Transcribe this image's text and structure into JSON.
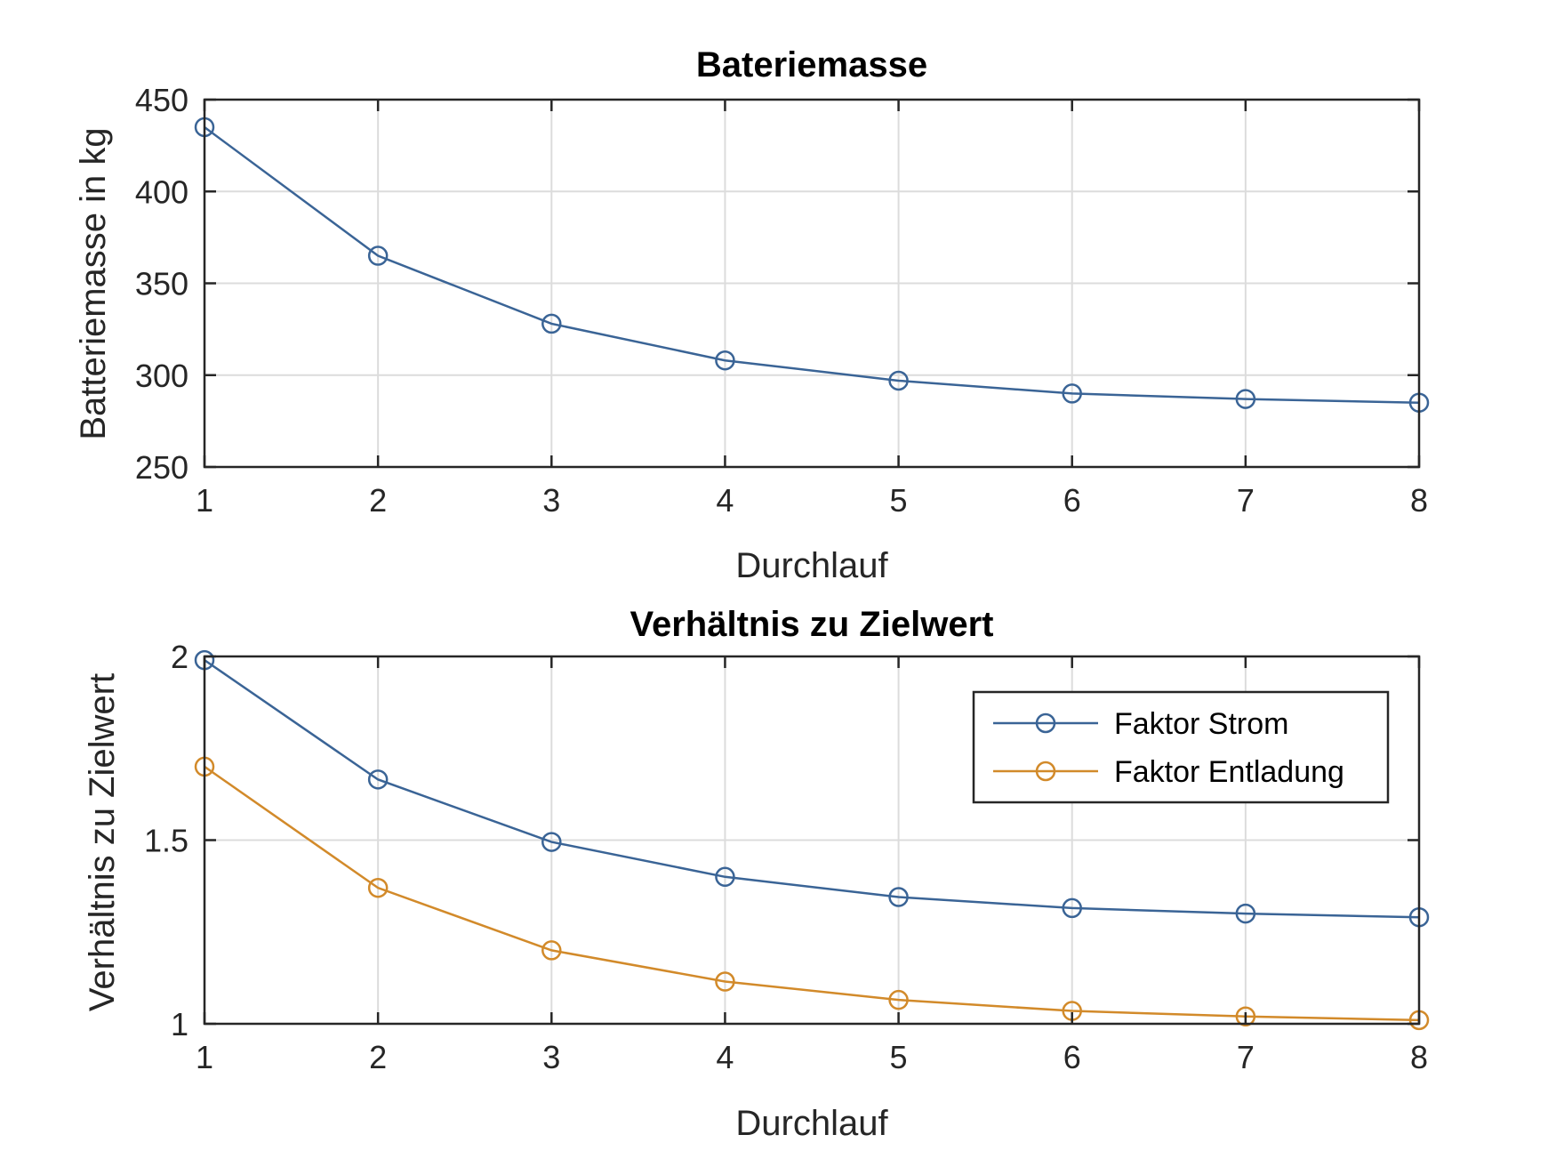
{
  "chart_data": [
    {
      "type": "line",
      "title": "Bateriemasse",
      "xlabel": "Durchlauf",
      "ylabel": "Batteriemasse in kg",
      "x": [
        1,
        2,
        3,
        4,
        5,
        6,
        7,
        8
      ],
      "xlim": [
        1,
        8
      ],
      "ylim": [
        250,
        450
      ],
      "xticks": [
        "1",
        "2",
        "3",
        "4",
        "5",
        "6",
        "7",
        "8"
      ],
      "yticks": [
        "250",
        "300",
        "350",
        "400",
        "450"
      ],
      "ytick_values": [
        250,
        300,
        350,
        400,
        450
      ],
      "grid": true,
      "series": [
        {
          "values": [
            435,
            365,
            328,
            308,
            297,
            290,
            287,
            285
          ],
          "color": "#3a6496",
          "marker": "circle"
        }
      ]
    },
    {
      "type": "line",
      "title": "Verhältnis zu Zielwert",
      "xlabel": "Durchlauf",
      "ylabel": "Verhältnis zu Zielwert",
      "x": [
        1,
        2,
        3,
        4,
        5,
        6,
        7,
        8
      ],
      "xlim": [
        1,
        8
      ],
      "ylim": [
        1,
        2
      ],
      "xticks": [
        "1",
        "2",
        "3",
        "4",
        "5",
        "6",
        "7",
        "8"
      ],
      "yticks": [
        "1",
        "1.5",
        "2"
      ],
      "ytick_values": [
        1,
        1.5,
        2
      ],
      "grid": true,
      "legend": "top-right",
      "series": [
        {
          "name": "Faktor Strom",
          "values": [
            1.99,
            1.665,
            1.495,
            1.4,
            1.345,
            1.315,
            1.3,
            1.29
          ],
          "color": "#3a6496",
          "marker": "circle"
        },
        {
          "name": "Faktor Entladung",
          "values": [
            1.7,
            1.37,
            1.2,
            1.115,
            1.065,
            1.035,
            1.02,
            1.01
          ],
          "color": "#d28a2a",
          "marker": "circle"
        }
      ]
    }
  ]
}
